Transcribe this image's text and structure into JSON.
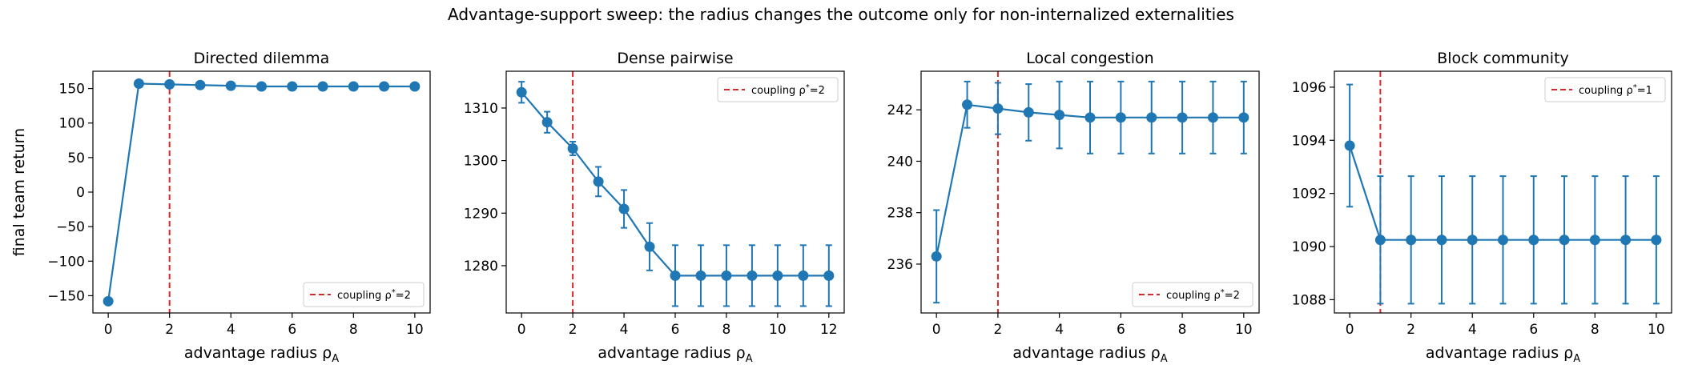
{
  "suptitle": "Advantage-support sweep: the radius changes the outcome only for non-internalized externalities",
  "colors": {
    "series": "#1f77b4",
    "coupling": "#d62728"
  },
  "chart_data": [
    {
      "type": "line",
      "title": "Directed dilemma",
      "xlabel": "advantage radius ρ",
      "xlabel_sub": "A",
      "ylabel": "final team return",
      "xlim": [
        -0.5,
        10.5
      ],
      "ylim": [
        -175,
        175
      ],
      "xticks": [
        0,
        2,
        4,
        6,
        8,
        10
      ],
      "yticks": [
        -150,
        -100,
        -50,
        0,
        50,
        100,
        150
      ],
      "coupling": 2,
      "legend_prefix": "coupling ρ",
      "legend_sup": "*",
      "legend_suffix": "=2",
      "legend_loc": "lower right",
      "x": [
        0,
        1,
        2,
        3,
        4,
        5,
        6,
        7,
        8,
        9,
        10
      ],
      "y": [
        -158,
        157,
        156,
        155,
        154,
        153,
        153,
        153,
        153,
        153,
        153
      ],
      "err": [
        0,
        0,
        0,
        0,
        0,
        0,
        0,
        0,
        0,
        0,
        0
      ]
    },
    {
      "type": "line",
      "title": "Dense pairwise",
      "xlabel": "advantage radius ρ",
      "xlabel_sub": "A",
      "ylabel": "",
      "xlim": [
        -0.6,
        12.6
      ],
      "ylim": [
        1271,
        1317
      ],
      "xticks": [
        0,
        2,
        4,
        6,
        8,
        10,
        12
      ],
      "yticks": [
        1280,
        1290,
        1300,
        1310
      ],
      "coupling": 2,
      "legend_prefix": "coupling ρ",
      "legend_sup": "*",
      "legend_suffix": "=2",
      "legend_loc": "upper right",
      "x": [
        0,
        1,
        2,
        3,
        4,
        5,
        6,
        7,
        8,
        9,
        10,
        11,
        12
      ],
      "y": [
        1313,
        1307.3,
        1302.3,
        1296,
        1290.8,
        1283.6,
        1278.1,
        1278.1,
        1278.1,
        1278.1,
        1278.1,
        1278.1,
        1278.1
      ],
      "err": [
        2,
        2,
        1.3,
        2.8,
        3.6,
        4.5,
        5.8,
        5.8,
        5.8,
        5.8,
        5.8,
        5.8,
        5.8
      ]
    },
    {
      "type": "line",
      "title": "Local congestion",
      "xlabel": "advantage radius ρ",
      "xlabel_sub": "A",
      "ylabel": "",
      "xlim": [
        -0.5,
        10.5
      ],
      "ylim": [
        234.1,
        243.5
      ],
      "xticks": [
        0,
        2,
        4,
        6,
        8,
        10
      ],
      "yticks": [
        236,
        238,
        240,
        242
      ],
      "coupling": 2,
      "legend_prefix": "coupling ρ",
      "legend_sup": "*",
      "legend_suffix": "=2",
      "legend_loc": "lower right",
      "x": [
        0,
        1,
        2,
        3,
        4,
        5,
        6,
        7,
        8,
        9,
        10
      ],
      "y": [
        236.3,
        242.2,
        242.05,
        241.9,
        241.8,
        241.7,
        241.7,
        241.7,
        241.7,
        241.7,
        241.7
      ],
      "err": [
        1.8,
        0.9,
        1.0,
        1.1,
        1.3,
        1.4,
        1.4,
        1.4,
        1.4,
        1.4,
        1.4
      ]
    },
    {
      "type": "line",
      "title": "Block community",
      "xlabel": "advantage radius ρ",
      "xlabel_sub": "A",
      "ylabel": "",
      "xlim": [
        -0.5,
        10.5
      ],
      "ylim": [
        1087.5,
        1096.6
      ],
      "xticks": [
        0,
        2,
        4,
        6,
        8,
        10
      ],
      "yticks": [
        1088,
        1090,
        1092,
        1094,
        1096
      ],
      "coupling": 1,
      "legend_prefix": "coupling ρ",
      "legend_sup": "*",
      "legend_suffix": "=1",
      "legend_loc": "upper right",
      "x": [
        0,
        1,
        2,
        3,
        4,
        5,
        6,
        7,
        8,
        9,
        10
      ],
      "y": [
        1093.8,
        1090.25,
        1090.25,
        1090.25,
        1090.25,
        1090.25,
        1090.25,
        1090.25,
        1090.25,
        1090.25,
        1090.25
      ],
      "err": [
        2.3,
        2.4,
        2.4,
        2.4,
        2.4,
        2.4,
        2.4,
        2.4,
        2.4,
        2.4,
        2.4
      ]
    }
  ]
}
